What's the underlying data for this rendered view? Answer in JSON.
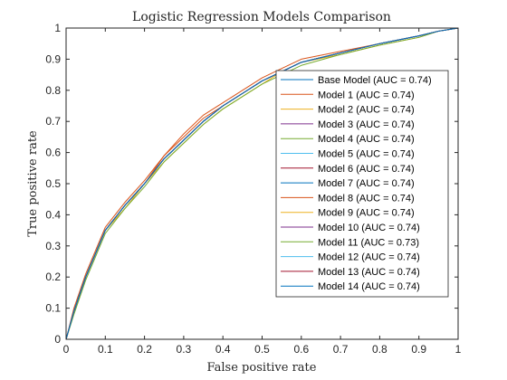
{
  "chart_data": {
    "type": "line",
    "title": "Logistic Regression Models Comparison",
    "xlabel": "False positive rate",
    "ylabel": "True positive rate",
    "xlim": [
      0,
      1
    ],
    "ylim": [
      0,
      1
    ],
    "x_ticks": [
      "0",
      "0.1",
      "0.2",
      "0.3",
      "0.4",
      "0.5",
      "0.6",
      "0.7",
      "0.8",
      "0.9",
      "1"
    ],
    "y_ticks": [
      "0",
      "0.1",
      "0.2",
      "0.3",
      "0.4",
      "0.5",
      "0.6",
      "0.7",
      "0.8",
      "0.9",
      "1"
    ],
    "grid": false,
    "legend_placement": "right",
    "x": [
      0,
      0.02,
      0.05,
      0.1,
      0.15,
      0.2,
      0.25,
      0.3,
      0.35,
      0.4,
      0.45,
      0.5,
      0.55,
      0.6,
      0.7,
      0.8,
      0.9,
      0.95,
      1.0
    ],
    "series": [
      {
        "name": "Base Model  (AUC = 0.74)",
        "color": "#0072BD",
        "values": [
          0,
          0.09,
          0.2,
          0.35,
          0.43,
          0.5,
          0.58,
          0.64,
          0.7,
          0.75,
          0.79,
          0.83,
          0.86,
          0.89,
          0.92,
          0.95,
          0.975,
          0.99,
          1.0
        ]
      },
      {
        "name": "Model 1  (AUC = 0.74)",
        "color": "#D95319",
        "values": [
          0,
          0.1,
          0.21,
          0.36,
          0.44,
          0.51,
          0.59,
          0.66,
          0.72,
          0.76,
          0.8,
          0.84,
          0.87,
          0.9,
          0.925,
          0.95,
          0.975,
          0.99,
          1.0
        ]
      },
      {
        "name": "Model 2  (AUC = 0.74)",
        "color": "#EDB120",
        "values": [
          0,
          0.09,
          0.2,
          0.35,
          0.42,
          0.5,
          0.57,
          0.63,
          0.69,
          0.74,
          0.78,
          0.82,
          0.86,
          0.89,
          0.915,
          0.945,
          0.97,
          0.99,
          1.0
        ]
      },
      {
        "name": "Model 3  (AUC = 0.74)",
        "color": "#7E2F8E",
        "values": [
          0,
          0.09,
          0.2,
          0.35,
          0.43,
          0.5,
          0.58,
          0.64,
          0.7,
          0.75,
          0.79,
          0.83,
          0.86,
          0.89,
          0.92,
          0.95,
          0.975,
          0.99,
          1.0
        ]
      },
      {
        "name": "Model 4  (AUC = 0.74)",
        "color": "#77AC30",
        "values": [
          0,
          0.09,
          0.2,
          0.35,
          0.43,
          0.5,
          0.58,
          0.64,
          0.7,
          0.75,
          0.79,
          0.83,
          0.86,
          0.89,
          0.92,
          0.95,
          0.975,
          0.99,
          1.0
        ]
      },
      {
        "name": "Model 5  (AUC = 0.74)",
        "color": "#4DBEEE",
        "values": [
          0,
          0.09,
          0.2,
          0.35,
          0.43,
          0.5,
          0.58,
          0.64,
          0.7,
          0.75,
          0.79,
          0.83,
          0.86,
          0.89,
          0.92,
          0.95,
          0.975,
          0.99,
          1.0
        ]
      },
      {
        "name": "Model 6  (AUC = 0.74)",
        "color": "#A2142F",
        "values": [
          0,
          0.09,
          0.2,
          0.35,
          0.43,
          0.5,
          0.58,
          0.64,
          0.7,
          0.75,
          0.79,
          0.83,
          0.86,
          0.89,
          0.92,
          0.95,
          0.975,
          0.99,
          1.0
        ]
      },
      {
        "name": "Model 7  (AUC = 0.74)",
        "color": "#0072BD",
        "values": [
          0,
          0.09,
          0.2,
          0.35,
          0.43,
          0.5,
          0.58,
          0.64,
          0.7,
          0.75,
          0.79,
          0.83,
          0.86,
          0.89,
          0.92,
          0.95,
          0.975,
          0.99,
          1.0
        ]
      },
      {
        "name": "Model 8  (AUC = 0.74)",
        "color": "#D95319",
        "values": [
          0,
          0.09,
          0.2,
          0.35,
          0.43,
          0.5,
          0.59,
          0.65,
          0.71,
          0.75,
          0.79,
          0.83,
          0.86,
          0.89,
          0.92,
          0.95,
          0.975,
          0.99,
          1.0
        ]
      },
      {
        "name": "Model 9  (AUC = 0.74)",
        "color": "#EDB120",
        "values": [
          0,
          0.09,
          0.2,
          0.35,
          0.43,
          0.5,
          0.58,
          0.64,
          0.7,
          0.75,
          0.79,
          0.83,
          0.86,
          0.89,
          0.92,
          0.95,
          0.975,
          0.99,
          1.0
        ]
      },
      {
        "name": "Model 10  (AUC = 0.74)",
        "color": "#7E2F8E",
        "values": [
          0,
          0.09,
          0.2,
          0.35,
          0.43,
          0.5,
          0.58,
          0.64,
          0.7,
          0.75,
          0.79,
          0.83,
          0.86,
          0.89,
          0.92,
          0.95,
          0.975,
          0.99,
          1.0
        ]
      },
      {
        "name": "Model 11  (AUC = 0.73)",
        "color": "#77AC30",
        "values": [
          0,
          0.08,
          0.19,
          0.34,
          0.42,
          0.49,
          0.57,
          0.63,
          0.69,
          0.74,
          0.78,
          0.82,
          0.85,
          0.88,
          0.915,
          0.945,
          0.97,
          0.99,
          1.0
        ]
      },
      {
        "name": "Model 12  (AUC = 0.74)",
        "color": "#4DBEEE",
        "values": [
          0,
          0.09,
          0.2,
          0.35,
          0.43,
          0.5,
          0.58,
          0.64,
          0.7,
          0.75,
          0.79,
          0.83,
          0.86,
          0.89,
          0.92,
          0.95,
          0.975,
          0.99,
          1.0
        ]
      },
      {
        "name": "Model 13  (AUC = 0.74)",
        "color": "#A2142F",
        "values": [
          0,
          0.09,
          0.2,
          0.35,
          0.43,
          0.5,
          0.58,
          0.64,
          0.7,
          0.75,
          0.79,
          0.83,
          0.86,
          0.89,
          0.92,
          0.95,
          0.975,
          0.99,
          1.0
        ]
      },
      {
        "name": "Model 14  (AUC = 0.74)",
        "color": "#0072BD",
        "values": [
          0,
          0.09,
          0.2,
          0.35,
          0.43,
          0.5,
          0.58,
          0.64,
          0.7,
          0.75,
          0.79,
          0.83,
          0.86,
          0.89,
          0.92,
          0.95,
          0.975,
          0.99,
          1.0
        ]
      }
    ]
  }
}
